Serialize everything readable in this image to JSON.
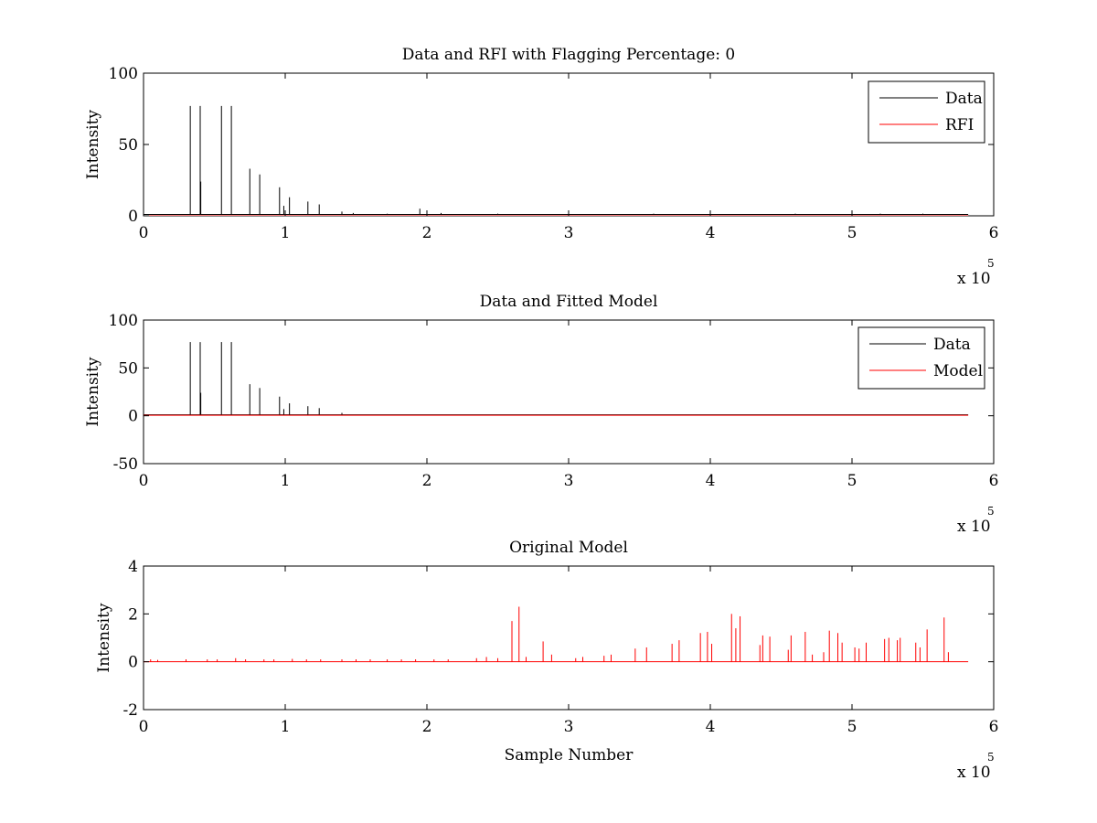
{
  "chart_data": [
    {
      "type": "line",
      "title": "Data and RFI with Flagging Percentage: 0",
      "xlabel": "",
      "ylabel": "Intensity",
      "xlim": [
        0,
        600000
      ],
      "ylim": [
        0,
        100
      ],
      "xticks": [
        0,
        1,
        2,
        3,
        4,
        5,
        6
      ],
      "xtick_labels": [
        "0",
        "1",
        "2",
        "3",
        "4",
        "5",
        "6"
      ],
      "x_multiplier": "x 10",
      "x_exponent": "5",
      "yticks": [
        0,
        50,
        100
      ],
      "ytick_labels": [
        "0",
        "50",
        "100"
      ],
      "grid": false,
      "legend_position": "top-right",
      "series": [
        {
          "name": "Data",
          "color": "#000000",
          "baseline": 1,
          "x_end": 582000,
          "spikes": [
            [
              33000,
              77
            ],
            [
              40000,
              77
            ],
            [
              40400,
              24
            ],
            [
              55000,
              77
            ],
            [
              62000,
              77
            ],
            [
              75000,
              33
            ],
            [
              82000,
              29
            ],
            [
              96000,
              20
            ],
            [
              99000,
              7
            ],
            [
              103000,
              13
            ],
            [
              116000,
              10
            ],
            [
              124000,
              8
            ],
            [
              140000,
              3
            ],
            [
              148000,
              2
            ],
            [
              172000,
              1.5
            ],
            [
              195000,
              5
            ],
            [
              210000,
              2
            ],
            [
              250000,
              1.5
            ],
            [
              300000,
              1.5
            ],
            [
              360000,
              1.5
            ],
            [
              400000,
              1.5
            ],
            [
              460000,
              1.5
            ],
            [
              520000,
              1.5
            ],
            [
              550000,
              1.5
            ]
          ]
        },
        {
          "name": "RFI",
          "color": "#ff0000",
          "baseline": 0,
          "x_end": 582000,
          "spikes": []
        }
      ]
    },
    {
      "type": "line",
      "title": "Data and Fitted Model",
      "xlabel": "",
      "ylabel": "Intensity",
      "xlim": [
        0,
        600000
      ],
      "ylim": [
        -50,
        100
      ],
      "xticks": [
        0,
        1,
        2,
        3,
        4,
        5,
        6
      ],
      "xtick_labels": [
        "0",
        "1",
        "2",
        "3",
        "4",
        "5",
        "6"
      ],
      "x_multiplier": "x 10",
      "x_exponent": "5",
      "yticks": [
        -50,
        0,
        50,
        100
      ],
      "ytick_labels": [
        "-50",
        "0",
        "50",
        "100"
      ],
      "grid": false,
      "legend_position": "top-right",
      "series": [
        {
          "name": "Data",
          "color": "#000000",
          "baseline": 1,
          "x_end": 582000,
          "spikes": [
            [
              33000,
              77
            ],
            [
              40000,
              77
            ],
            [
              40400,
              24
            ],
            [
              55000,
              77
            ],
            [
              62000,
              77
            ],
            [
              75000,
              33
            ],
            [
              82000,
              29
            ],
            [
              96000,
              20
            ],
            [
              99000,
              7
            ],
            [
              103000,
              13
            ],
            [
              116000,
              10
            ],
            [
              124000,
              8
            ],
            [
              140000,
              3
            ]
          ]
        },
        {
          "name": "Model",
          "color": "#ff0000",
          "baseline": 0.5,
          "x_end": 582000,
          "spikes": []
        }
      ]
    },
    {
      "type": "line",
      "title": "Original Model",
      "xlabel": "Sample Number",
      "ylabel": "Intensity",
      "xlim": [
        0,
        600000
      ],
      "ylim": [
        -2,
        4
      ],
      "xticks": [
        0,
        1,
        2,
        3,
        4,
        5,
        6
      ],
      "xtick_labels": [
        "0",
        "1",
        "2",
        "3",
        "4",
        "5",
        "6"
      ],
      "x_multiplier": "x 10",
      "x_exponent": "5",
      "yticks": [
        -2,
        0,
        2,
        4
      ],
      "ytick_labels": [
        "-2",
        "0",
        "2",
        "4"
      ],
      "grid": false,
      "legend_position": "none",
      "series": [
        {
          "name": "",
          "color": "#ff0000",
          "baseline": 0,
          "x_end": 582000,
          "spikes": [
            [
              5000,
              0.1
            ],
            [
              10000,
              0.08
            ],
            [
              30000,
              0.1
            ],
            [
              45000,
              0.1
            ],
            [
              52000,
              0.1
            ],
            [
              65000,
              0.15
            ],
            [
              72000,
              0.1
            ],
            [
              85000,
              0.1
            ],
            [
              92000,
              0.1
            ],
            [
              105000,
              0.12
            ],
            [
              115000,
              0.1
            ],
            [
              125000,
              0.1
            ],
            [
              140000,
              0.1
            ],
            [
              150000,
              0.1
            ],
            [
              160000,
              0.1
            ],
            [
              172000,
              0.1
            ],
            [
              182000,
              0.1
            ],
            [
              192000,
              0.1
            ],
            [
              205000,
              0.1
            ],
            [
              215000,
              0.1
            ],
            [
              235000,
              0.15
            ],
            [
              242000,
              0.2
            ],
            [
              250000,
              0.15
            ],
            [
              260000,
              1.7
            ],
            [
              265000,
              2.3
            ],
            [
              270000,
              0.2
            ],
            [
              282000,
              0.85
            ],
            [
              288000,
              0.3
            ],
            [
              305000,
              0.15
            ],
            [
              310000,
              0.2
            ],
            [
              325000,
              0.25
            ],
            [
              330000,
              0.3
            ],
            [
              347000,
              0.55
            ],
            [
              355000,
              0.6
            ],
            [
              373000,
              0.75
            ],
            [
              378000,
              0.9
            ],
            [
              393000,
              1.2
            ],
            [
              398000,
              1.25
            ],
            [
              401000,
              0.75
            ],
            [
              415000,
              2.0
            ],
            [
              418000,
              1.4
            ],
            [
              421000,
              1.9
            ],
            [
              435000,
              0.7
            ],
            [
              437000,
              1.1
            ],
            [
              442000,
              1.05
            ],
            [
              455000,
              0.5
            ],
            [
              457000,
              1.1
            ],
            [
              467000,
              1.25
            ],
            [
              472000,
              0.3
            ],
            [
              480000,
              0.4
            ],
            [
              484000,
              1.3
            ],
            [
              490000,
              1.2
            ],
            [
              493000,
              0.8
            ],
            [
              502000,
              0.6
            ],
            [
              505000,
              0.55
            ],
            [
              510000,
              0.8
            ],
            [
              523000,
              0.95
            ],
            [
              526000,
              1.0
            ],
            [
              532000,
              0.9
            ],
            [
              534000,
              1.0
            ],
            [
              545000,
              0.8
            ],
            [
              548000,
              0.6
            ],
            [
              553000,
              1.35
            ],
            [
              565000,
              1.85
            ],
            [
              568000,
              0.4
            ]
          ]
        }
      ]
    }
  ]
}
